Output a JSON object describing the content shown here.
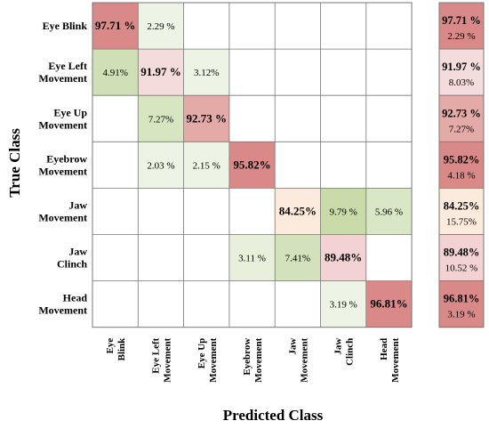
{
  "chart_data": {
    "type": "heatmap",
    "title": "",
    "xlabel": "Predicted Class",
    "ylabel": "True Class",
    "classes": [
      "Eye Blink",
      "Eye Left Movement",
      "Eye Up Movement",
      "Eyebrow Movement",
      "Jaw Movement",
      "Jaw Clinch",
      "Head Movement"
    ],
    "row_labels": [
      [
        "Eye Blink"
      ],
      [
        "Eye Left",
        "Movement"
      ],
      [
        "Eye Up",
        "Movement"
      ],
      [
        "Eyebrow",
        "Movement"
      ],
      [
        "Jaw",
        "Movement"
      ],
      [
        "Jaw",
        "Clinch"
      ],
      [
        "Head",
        "Movement"
      ]
    ],
    "col_labels": [
      [
        "Eye",
        "Blink"
      ],
      [
        "Eye Left",
        "Movement"
      ],
      [
        "Eye Up",
        "Movement"
      ],
      [
        "Eyebrow",
        "Movement"
      ],
      [
        "Jaw",
        "Movement"
      ],
      [
        "Jaw",
        "Clinch"
      ],
      [
        "Head",
        "Movement"
      ]
    ],
    "cells": [
      {
        "row": 0,
        "col": 0,
        "value": 97.71,
        "label": "97.71 %",
        "color": "#d98a88",
        "bold": true
      },
      {
        "row": 0,
        "col": 1,
        "value": 2.29,
        "label": "2.29 %",
        "color": "#eef4e5",
        "bold": false
      },
      {
        "row": 1,
        "col": 0,
        "value": 4.91,
        "label": "4.91%",
        "color": "#cfe0b6",
        "bold": false
      },
      {
        "row": 1,
        "col": 1,
        "value": 91.97,
        "label": "91.97 %",
        "color": "#f5dcdc",
        "bold": true
      },
      {
        "row": 1,
        "col": 2,
        "value": 3.12,
        "label": "3.12%",
        "color": "#eef4e5",
        "bold": false
      },
      {
        "row": 2,
        "col": 1,
        "value": 7.27,
        "label": "7.27%",
        "color": "#d7e5c1",
        "bold": false
      },
      {
        "row": 2,
        "col": 2,
        "value": 92.73,
        "label": "92.73 %",
        "color": "#e3aaa8",
        "bold": true
      },
      {
        "row": 3,
        "col": 1,
        "value": 2.03,
        "label": "2.03 %",
        "color": "#eef4e5",
        "bold": false
      },
      {
        "row": 3,
        "col": 2,
        "value": 2.15,
        "label": "2.15 %",
        "color": "#eef4e5",
        "bold": false
      },
      {
        "row": 3,
        "col": 3,
        "value": 95.82,
        "label": "95.82%",
        "color": "#d98a88",
        "bold": true
      },
      {
        "row": 4,
        "col": 4,
        "value": 84.25,
        "label": "84.25%",
        "color": "#fcebdd",
        "bold": true
      },
      {
        "row": 4,
        "col": 5,
        "value": 9.79,
        "label": "9.79 %",
        "color": "#c8dba9",
        "bold": false
      },
      {
        "row": 4,
        "col": 6,
        "value": 5.96,
        "label": "5.96 %",
        "color": "#dae7c7",
        "bold": false
      },
      {
        "row": 5,
        "col": 3,
        "value": 3.11,
        "label": "3.11 %",
        "color": "#e8f0dc",
        "bold": false
      },
      {
        "row": 5,
        "col": 4,
        "value": 7.41,
        "label": "7.41%",
        "color": "#d3e2bc",
        "bold": false
      },
      {
        "row": 5,
        "col": 5,
        "value": 89.48,
        "label": "89.48%",
        "color": "#f2d2d2",
        "bold": true
      },
      {
        "row": 6,
        "col": 5,
        "value": 3.19,
        "label": "3.19 %",
        "color": "#eef4e5",
        "bold": false
      },
      {
        "row": 6,
        "col": 6,
        "value": 96.81,
        "label": "96.81%",
        "color": "#d98a88",
        "bold": true
      }
    ],
    "summary": [
      {
        "row": 0,
        "correct": 97.71,
        "correct_label": "97.71 %",
        "error": 2.29,
        "error_label": "2.29 %",
        "color": "#d98a88"
      },
      {
        "row": 1,
        "correct": 91.97,
        "correct_label": "91.97 %",
        "error": 8.03,
        "error_label": "8.03%",
        "color": "#f5dcdc"
      },
      {
        "row": 2,
        "correct": 92.73,
        "correct_label": "92.73 %",
        "error": 7.27,
        "error_label": "7.27%",
        "color": "#e3aaa8"
      },
      {
        "row": 3,
        "correct": 95.82,
        "correct_label": "95.82%",
        "error": 4.18,
        "error_label": "4.18 %",
        "color": "#d98a88"
      },
      {
        "row": 4,
        "correct": 84.25,
        "correct_label": "84.25%",
        "error": 15.75,
        "error_label": "15.75%",
        "color": "#fcebdd"
      },
      {
        "row": 5,
        "correct": 89.48,
        "correct_label": "89.48%",
        "error": 10.52,
        "error_label": "10.52 %",
        "color": "#f2d2d2"
      },
      {
        "row": 6,
        "correct": 96.81,
        "correct_label": "96.81%",
        "error": 3.19,
        "error_label": "3.19 %",
        "color": "#d98a88"
      }
    ],
    "grid": true,
    "legend": "none"
  }
}
